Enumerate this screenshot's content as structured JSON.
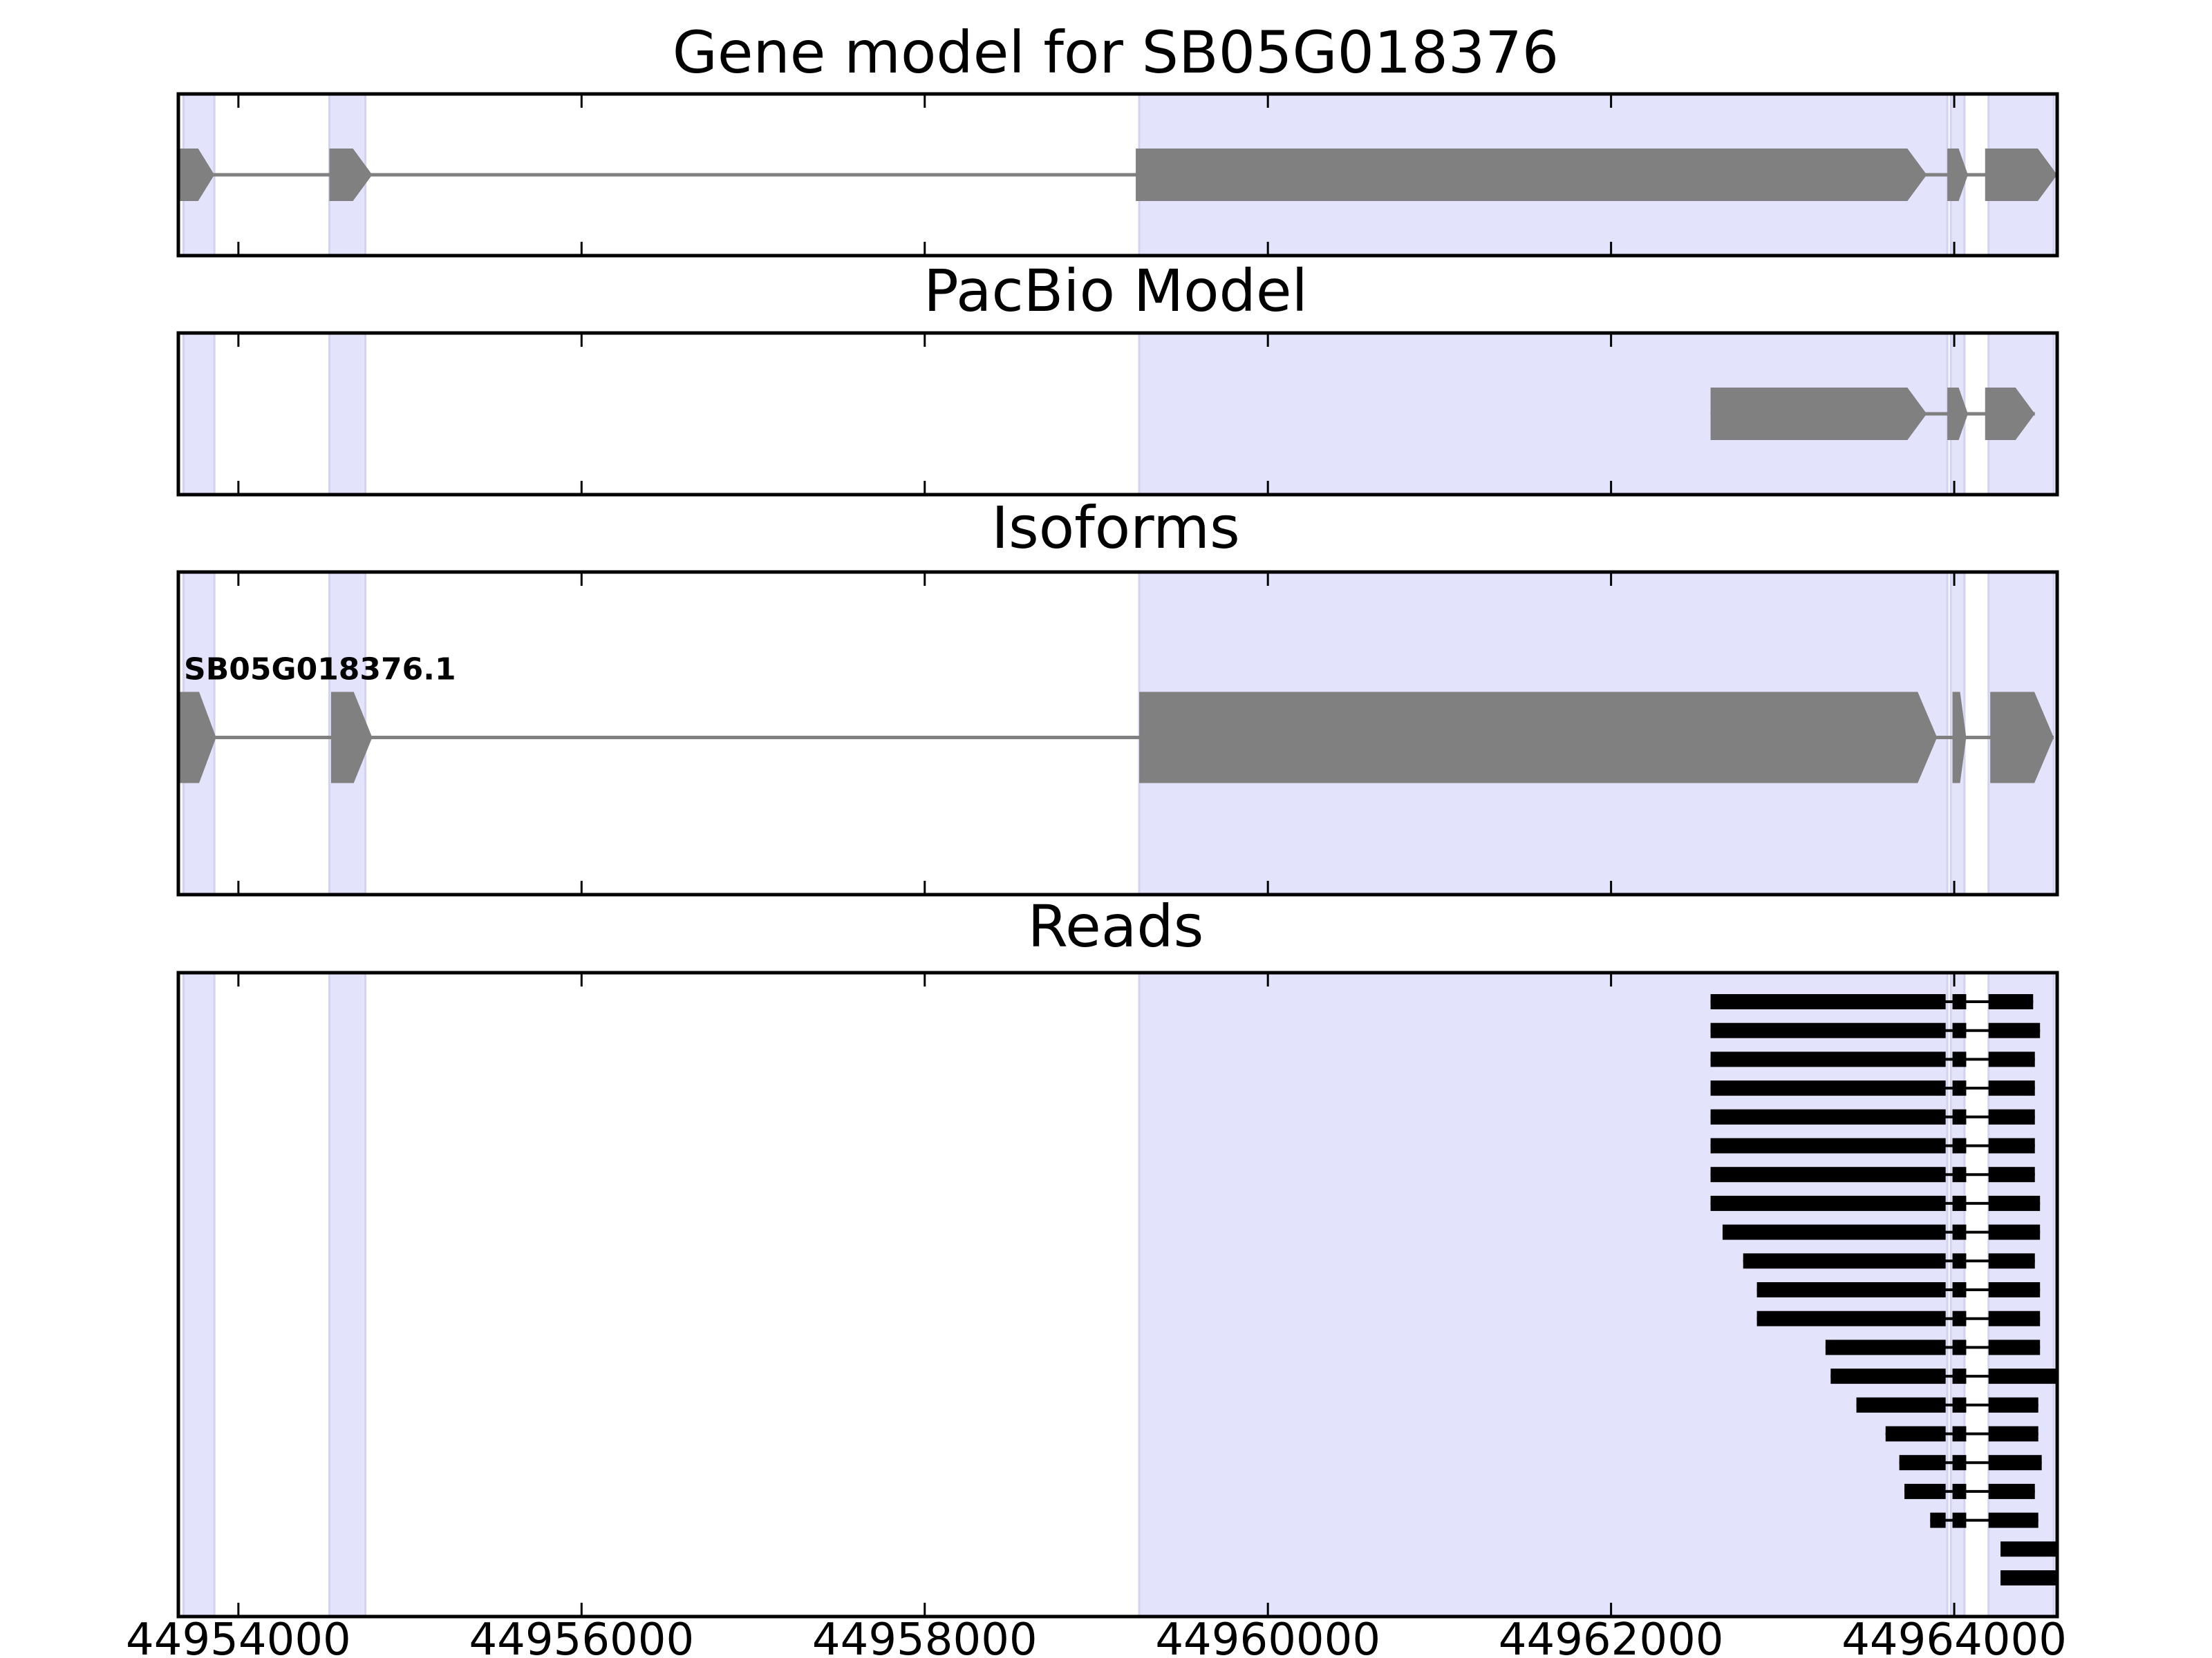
{
  "chart_data": {
    "type": "gene-track",
    "xlim": [
      44953650,
      44964600
    ],
    "xticks": [
      44954000,
      44956000,
      44958000,
      44960000,
      44962000,
      44964000
    ],
    "x_tick_labels": [
      "44954000",
      "44956000",
      "44958000",
      "44960000",
      "44962000",
      "44964000"
    ],
    "highlight_color": "#e3e3fb",
    "feature_color": "#808080",
    "read_color": "#000000",
    "highlight_regions": [
      [
        44953680,
        44953860
      ],
      [
        44954530,
        44954740
      ],
      [
        44959250,
        44963960
      ],
      [
        44963980,
        44964060
      ],
      [
        44964200,
        44964580
      ]
    ],
    "panels": [
      {
        "title": "Gene model for SB05G018376",
        "kind": "gene",
        "features": [
          {
            "exons": [
              [
                44953650,
                44953860
              ],
              [
                44954530,
                44954780
              ],
              [
                44959230,
                44963840
              ],
              [
                44963960,
                44964080
              ],
              [
                44964180,
                44964600
              ]
            ]
          }
        ]
      },
      {
        "title": "PacBio Model",
        "kind": "gene",
        "features": [
          {
            "exons": [
              [
                44962580,
                44963840
              ],
              [
                44963960,
                44964080
              ],
              [
                44964180,
                44964470
              ]
            ]
          }
        ]
      },
      {
        "title": "Isoforms",
        "kind": "isoform",
        "features": [
          {
            "name": "SB05G018376.1",
            "exons": [
              [
                44953650,
                44953870
              ],
              [
                44954540,
                44954780
              ],
              [
                44959250,
                44963900
              ],
              [
                44963990,
                44964070
              ],
              [
                44964210,
                44964580
              ]
            ]
          }
        ]
      },
      {
        "title": "Reads",
        "kind": "reads",
        "features": [
          {
            "exons": [
              [
                44962580,
                44963950
              ],
              [
                44963990,
                44964070
              ],
              [
                44964200,
                44964460
              ]
            ]
          },
          {
            "exons": [
              [
                44962580,
                44963950
              ],
              [
                44963990,
                44964070
              ],
              [
                44964200,
                44964500
              ]
            ]
          },
          {
            "exons": [
              [
                44962580,
                44963950
              ],
              [
                44963990,
                44964070
              ],
              [
                44964200,
                44964470
              ]
            ]
          },
          {
            "exons": [
              [
                44962580,
                44963950
              ],
              [
                44963990,
                44964070
              ],
              [
                44964200,
                44964470
              ]
            ]
          },
          {
            "exons": [
              [
                44962580,
                44963950
              ],
              [
                44963990,
                44964070
              ],
              [
                44964200,
                44964470
              ]
            ]
          },
          {
            "exons": [
              [
                44962580,
                44963950
              ],
              [
                44963990,
                44964070
              ],
              [
                44964200,
                44964470
              ]
            ]
          },
          {
            "exons": [
              [
                44962580,
                44963950
              ],
              [
                44963990,
                44964070
              ],
              [
                44964200,
                44964470
              ]
            ]
          },
          {
            "exons": [
              [
                44962580,
                44963950
              ],
              [
                44963990,
                44964070
              ],
              [
                44964200,
                44964500
              ]
            ]
          },
          {
            "exons": [
              [
                44962650,
                44963950
              ],
              [
                44963990,
                44964070
              ],
              [
                44964200,
                44964500
              ]
            ]
          },
          {
            "exons": [
              [
                44962770,
                44963950
              ],
              [
                44963990,
                44964070
              ],
              [
                44964200,
                44964470
              ]
            ]
          },
          {
            "exons": [
              [
                44962850,
                44963950
              ],
              [
                44963990,
                44964070
              ],
              [
                44964200,
                44964500
              ]
            ]
          },
          {
            "exons": [
              [
                44962850,
                44963950
              ],
              [
                44963990,
                44964070
              ],
              [
                44964200,
                44964500
              ]
            ]
          },
          {
            "exons": [
              [
                44963250,
                44963950
              ],
              [
                44963990,
                44964070
              ],
              [
                44964200,
                44964500
              ]
            ]
          },
          {
            "exons": [
              [
                44963280,
                44963950
              ],
              [
                44963990,
                44964070
              ],
              [
                44964200,
                44964600
              ]
            ]
          },
          {
            "exons": [
              [
                44963430,
                44963950
              ],
              [
                44963990,
                44964070
              ],
              [
                44964200,
                44964490
              ]
            ]
          },
          {
            "exons": [
              [
                44963600,
                44963950
              ],
              [
                44963990,
                44964070
              ],
              [
                44964200,
                44964490
              ]
            ]
          },
          {
            "exons": [
              [
                44963680,
                44963950
              ],
              [
                44963990,
                44964070
              ],
              [
                44964200,
                44964510
              ]
            ]
          },
          {
            "exons": [
              [
                44963710,
                44963950
              ],
              [
                44963990,
                44964070
              ],
              [
                44964200,
                44964470
              ]
            ]
          },
          {
            "exons": [
              [
                44963860,
                44963950
              ],
              [
                44963990,
                44964070
              ],
              [
                44964200,
                44964490
              ]
            ]
          },
          {
            "exons": [
              [
                44964270,
                44964600
              ]
            ]
          },
          {
            "exons": [
              [
                44964270,
                44964600
              ]
            ]
          }
        ]
      }
    ]
  }
}
